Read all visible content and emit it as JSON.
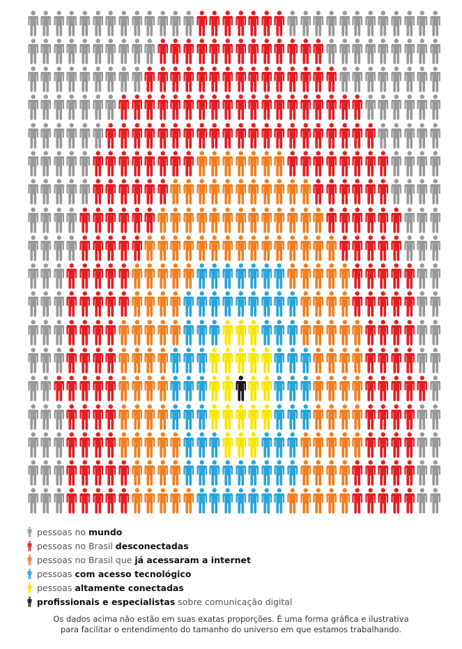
{
  "colors": {
    "world": "#999999",
    "disconnected": "#e31e24",
    "accessed": "#f07f22",
    "tech": "#2aa4d9",
    "high": "#f7e600",
    "pro": "#1a1a1a"
  },
  "figure": {
    "icon": "person-icon",
    "cols": 32,
    "rows": 18,
    "center": {
      "col": 16,
      "row": 13
    },
    "radii": {
      "pro": 0.5,
      "high": 2.5,
      "tech": 5.2,
      "accessed": 9.3,
      "disconnected": 14.0
    }
  },
  "legend": [
    {
      "key": "world",
      "icon": "person-icon",
      "prefix": "pessoas no ",
      "bold": "mundo",
      "suffix": ""
    },
    {
      "key": "disconnected",
      "icon": "person-icon",
      "prefix": "pessoas no Brasil ",
      "bold": "desconectadas",
      "suffix": ""
    },
    {
      "key": "accessed",
      "icon": "person-icon",
      "prefix": "pessoas no Brasil que ",
      "bold": "já acessaram a internet",
      "suffix": ""
    },
    {
      "key": "tech",
      "icon": "person-icon",
      "prefix": "pessoas ",
      "bold": "com acesso tecnológico",
      "suffix": ""
    },
    {
      "key": "high",
      "icon": "person-icon",
      "prefix": "pessoas ",
      "bold": "altamente conectadas",
      "suffix": ""
    },
    {
      "key": "pro",
      "icon": "person-icon",
      "prefix": "",
      "bold": "profissionais e especialistas",
      "suffix": " sobre comunicação digital"
    }
  ],
  "note": {
    "line1": "Os dados acima não estão em suas exatas proporções. É uma forma gráfica e ilustrativa",
    "line2": "para facilitar o entendimento do tamanho do universo em que estamos trabalhando."
  }
}
